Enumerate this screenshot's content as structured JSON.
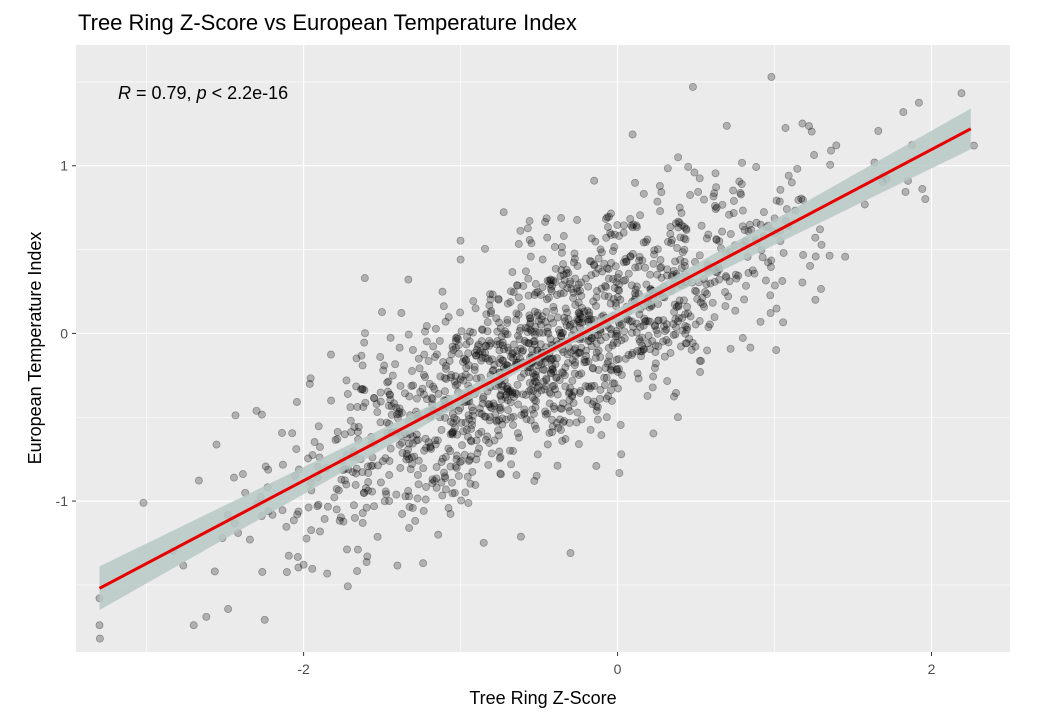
{
  "chart_data": {
    "type": "scatter",
    "title": "Tree Ring Z-Score vs European Temperature Index",
    "xlabel": "Tree Ring Z-Score",
    "ylabel": "European Temperature Index",
    "xlim": [
      -3.45,
      2.5
    ],
    "ylim": [
      -1.9,
      1.72
    ],
    "x_ticks": [
      -2,
      0,
      2
    ],
    "y_ticks": [
      -1,
      0,
      1
    ],
    "x_tick_labels": [
      "-2",
      "0",
      "2"
    ],
    "y_tick_labels": [
      "-1",
      "0",
      "1"
    ],
    "grid": true,
    "background": "#ebebeb",
    "grid_color": "#ffffff",
    "point_color": "#000000",
    "point_opacity": 0.25,
    "fit_line_color": "#e60000",
    "confidence_band_color": "#b7c9c5",
    "annotation": {
      "r_symbol": "R",
      "r_text": " = 0.79, ",
      "p_symbol": "p",
      "p_text": " < 2.2e-16"
    },
    "regression": {
      "x": [
        -3.3,
        2.25
      ],
      "y": [
        -1.52,
        1.22
      ],
      "slope": 0.494,
      "intercept": 0.11,
      "r": 0.79
    },
    "sample_points": [
      {
        "x": 2.27,
        "y": 1.12
      },
      {
        "x": 1.82,
        "y": 1.32
      },
      {
        "x": 0.98,
        "y": 1.53
      },
      {
        "x": 0.48,
        "y": 1.47
      },
      {
        "x": 1.36,
        "y": 1.09
      },
      {
        "x": 1.85,
        "y": 0.91
      },
      {
        "x": -3.3,
        "y": -1.58
      },
      {
        "x": -3.3,
        "y": -1.74
      },
      {
        "x": -2.7,
        "y": -1.74
      },
      {
        "x": -2.62,
        "y": -1.69
      },
      {
        "x": -3.02,
        "y": -1.01
      },
      {
        "x": -0.3,
        "y": -1.31
      },
      {
        "x": -1.61,
        "y": 0.33
      },
      {
        "x": -1.0,
        "y": 0.44
      }
    ]
  }
}
